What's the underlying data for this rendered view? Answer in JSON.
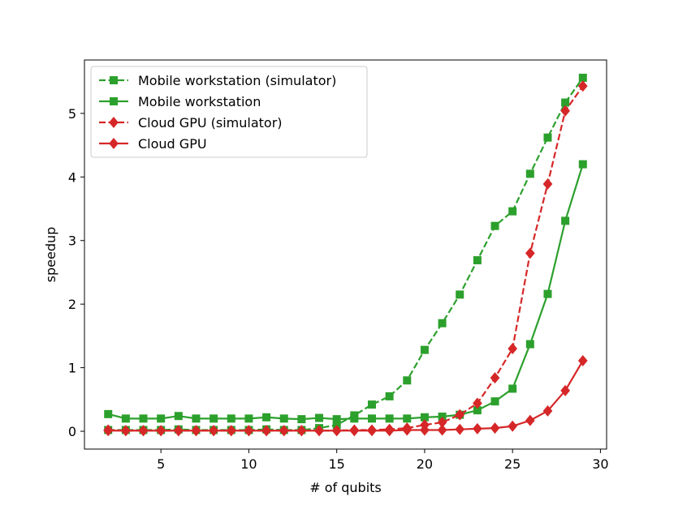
{
  "chart_data": {
    "type": "line",
    "xlabel": "# of qubits",
    "ylabel": "speedup",
    "xlim": [
      0.65,
      30.35
    ],
    "ylim": [
      -0.28,
      5.84
    ],
    "xticks": [
      5,
      10,
      15,
      20,
      25,
      30
    ],
    "yticks": [
      0,
      1,
      2,
      3,
      4,
      5
    ],
    "legend_position": "top-left",
    "grid": false,
    "x": [
      2,
      3,
      4,
      5,
      6,
      7,
      8,
      9,
      10,
      11,
      12,
      13,
      14,
      15,
      16,
      17,
      18,
      19,
      20,
      21,
      22,
      23,
      24,
      25,
      26,
      27,
      28,
      29
    ],
    "series": [
      {
        "name": "Mobile workstation (simulator)",
        "color": "#2ca02c",
        "linestyle": "dashed",
        "marker": "square",
        "values": [
          0.02,
          0.02,
          0.02,
          0.02,
          0.03,
          0.02,
          0.02,
          0.02,
          0.02,
          0.03,
          0.02,
          0.02,
          0.05,
          0.1,
          0.25,
          0.42,
          0.55,
          0.8,
          1.28,
          1.7,
          2.15,
          2.69,
          3.23,
          3.46,
          4.05,
          4.62,
          5.17,
          5.56
        ]
      },
      {
        "name": "Mobile workstation",
        "color": "#2ca02c",
        "linestyle": "solid",
        "marker": "square",
        "values": [
          0.27,
          0.2,
          0.2,
          0.2,
          0.24,
          0.2,
          0.2,
          0.2,
          0.2,
          0.22,
          0.2,
          0.19,
          0.21,
          0.19,
          0.2,
          0.2,
          0.2,
          0.2,
          0.22,
          0.23,
          0.26,
          0.33,
          0.47,
          0.67,
          1.37,
          2.16,
          3.31,
          4.2
        ]
      },
      {
        "name": "Cloud GPU (simulator)",
        "color": "#d62728",
        "linestyle": "dashed",
        "marker": "diamond",
        "values": [
          0.02,
          0.01,
          0.01,
          0.01,
          0.01,
          0.01,
          0.01,
          0.01,
          0.01,
          0.01,
          0.01,
          0.01,
          0.01,
          0.01,
          0.02,
          0.02,
          0.03,
          0.05,
          0.1,
          0.14,
          0.26,
          0.44,
          0.84,
          1.3,
          2.8,
          3.89,
          5.04,
          5.43
        ]
      },
      {
        "name": "Cloud GPU",
        "color": "#d62728",
        "linestyle": "solid",
        "marker": "diamond",
        "values": [
          0.01,
          0.01,
          0.01,
          0.01,
          0.01,
          0.01,
          0.01,
          0.01,
          0.01,
          0.01,
          0.01,
          0.01,
          0.01,
          0.01,
          0.01,
          0.01,
          0.01,
          0.02,
          0.02,
          0.02,
          0.03,
          0.04,
          0.05,
          0.08,
          0.17,
          0.32,
          0.64,
          1.11
        ]
      }
    ]
  }
}
